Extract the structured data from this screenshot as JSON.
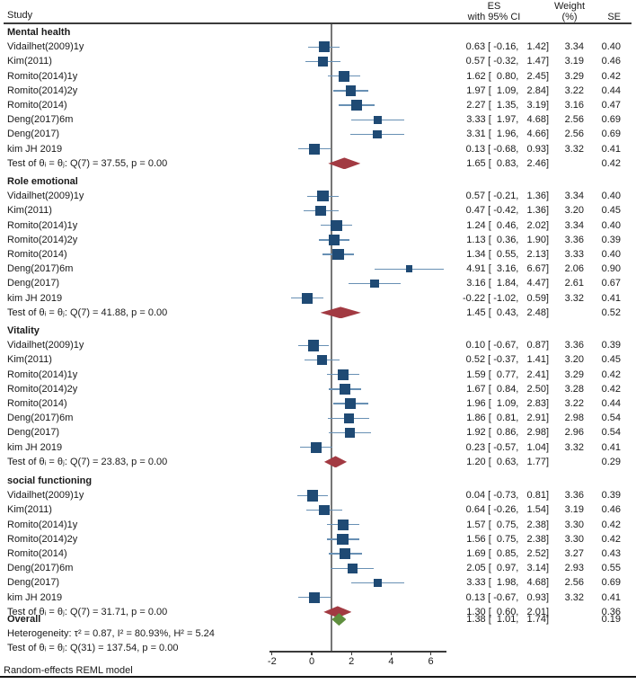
{
  "header": {
    "study": "Study",
    "es_line1": "ES",
    "es_line2": "with 95% CI",
    "weight_line1": "Weight",
    "weight_line2": "(%)",
    "se": "SE"
  },
  "footer": {
    "model": "Random-effects REML model"
  },
  "colors": {
    "marker_square": "#1f4a74",
    "ci_line": "#6890b4",
    "diamond_subgroup": "#a23a42",
    "diamond_overall": "#5f8f3e",
    "reference_line": "#767676",
    "axis": "#3b3b3b",
    "text": "#1a1a1a"
  },
  "chart_data": {
    "type": "forest",
    "title": "",
    "xlabel": "",
    "axis": {
      "ticks": [
        -2,
        0,
        2,
        4,
        6
      ],
      "range": [
        -2.1,
        6.8
      ]
    },
    "reference_line_x": 1,
    "legend": "none",
    "grid": false,
    "columns": [
      "Study",
      "ES with 95% CI",
      "Weight (%)",
      "SE"
    ],
    "groups": [
      {
        "name": "Mental health",
        "studies": [
          {
            "label": "Vidailhet(2009)1y",
            "es": 0.63,
            "lo": -0.16,
            "hi": 1.42,
            "weight": 3.34,
            "se": 0.4
          },
          {
            "label": "Kim(2011)",
            "es": 0.57,
            "lo": -0.32,
            "hi": 1.47,
            "weight": 3.19,
            "se": 0.46
          },
          {
            "label": "Romito(2014)1y",
            "es": 1.62,
            "lo": 0.8,
            "hi": 2.45,
            "weight": 3.29,
            "se": 0.42
          },
          {
            "label": "Romito(2014)2y",
            "es": 1.97,
            "lo": 1.09,
            "hi": 2.84,
            "weight": 3.22,
            "se": 0.44
          },
          {
            "label": "Romito(2014)",
            "es": 2.27,
            "lo": 1.35,
            "hi": 3.19,
            "weight": 3.16,
            "se": 0.47
          },
          {
            "label": "Deng(2017)6m",
            "es": 3.33,
            "lo": 1.97,
            "hi": 4.68,
            "weight": 2.56,
            "se": 0.69
          },
          {
            "label": "Deng(2017)",
            "es": 3.31,
            "lo": 1.96,
            "hi": 4.66,
            "weight": 2.56,
            "se": 0.69
          },
          {
            "label": "kim JH 2019",
            "es": 0.13,
            "lo": -0.68,
            "hi": 0.93,
            "weight": 3.32,
            "se": 0.41
          }
        ],
        "test": {
          "label": "Test of θᵢ = θⱼ: Q(7) = 37.55, p = 0.00",
          "es": 1.65,
          "lo": 0.83,
          "hi": 2.46,
          "se": 0.42
        }
      },
      {
        "name": "Role emotional",
        "studies": [
          {
            "label": "Vidailhet(2009)1y",
            "es": 0.57,
            "lo": -0.21,
            "hi": 1.36,
            "weight": 3.34,
            "se": 0.4
          },
          {
            "label": "Kim(2011)",
            "es": 0.47,
            "lo": -0.42,
            "hi": 1.36,
            "weight": 3.2,
            "se": 0.45
          },
          {
            "label": "Romito(2014)1y",
            "es": 1.24,
            "lo": 0.46,
            "hi": 2.02,
            "weight": 3.34,
            "se": 0.4
          },
          {
            "label": "Romito(2014)2y",
            "es": 1.13,
            "lo": 0.36,
            "hi": 1.9,
            "weight": 3.36,
            "se": 0.39
          },
          {
            "label": "Romito(2014)",
            "es": 1.34,
            "lo": 0.55,
            "hi": 2.13,
            "weight": 3.33,
            "se": 0.4
          },
          {
            "label": "Deng(2017)6m",
            "es": 4.91,
            "lo": 3.16,
            "hi": 6.67,
            "weight": 2.06,
            "se": 0.9
          },
          {
            "label": "Deng(2017)",
            "es": 3.16,
            "lo": 1.84,
            "hi": 4.47,
            "weight": 2.61,
            "se": 0.67
          },
          {
            "label": "kim JH 2019",
            "es": -0.22,
            "lo": -1.02,
            "hi": 0.59,
            "weight": 3.32,
            "se": 0.41
          }
        ],
        "test": {
          "label": "Test of θᵢ = θⱼ: Q(7) = 41.88, p = 0.00",
          "es": 1.45,
          "lo": 0.43,
          "hi": 2.48,
          "se": 0.52
        }
      },
      {
        "name": "Vitality",
        "studies": [
          {
            "label": "Vidailhet(2009)1y",
            "es": 0.1,
            "lo": -0.67,
            "hi": 0.87,
            "weight": 3.36,
            "se": 0.39
          },
          {
            "label": "Kim(2011)",
            "es": 0.52,
            "lo": -0.37,
            "hi": 1.41,
            "weight": 3.2,
            "se": 0.45
          },
          {
            "label": "Romito(2014)1y",
            "es": 1.59,
            "lo": 0.77,
            "hi": 2.41,
            "weight": 3.29,
            "se": 0.42
          },
          {
            "label": "Romito(2014)2y",
            "es": 1.67,
            "lo": 0.84,
            "hi": 2.5,
            "weight": 3.28,
            "se": 0.42
          },
          {
            "label": "Romito(2014)",
            "es": 1.96,
            "lo": 1.09,
            "hi": 2.83,
            "weight": 3.22,
            "se": 0.44
          },
          {
            "label": "Deng(2017)6m",
            "es": 1.86,
            "lo": 0.81,
            "hi": 2.91,
            "weight": 2.98,
            "se": 0.54
          },
          {
            "label": "Deng(2017)",
            "es": 1.92,
            "lo": 0.86,
            "hi": 2.98,
            "weight": 2.96,
            "se": 0.54
          },
          {
            "label": "kim JH 2019",
            "es": 0.23,
            "lo": -0.57,
            "hi": 1.04,
            "weight": 3.32,
            "se": 0.41
          }
        ],
        "test": {
          "label": "Test of θᵢ = θⱼ: Q(7) = 23.83, p = 0.00",
          "es": 1.2,
          "lo": 0.63,
          "hi": 1.77,
          "se": 0.29
        }
      },
      {
        "name": "social functioning",
        "studies": [
          {
            "label": "Vidailhet(2009)1y",
            "es": 0.04,
            "lo": -0.73,
            "hi": 0.81,
            "weight": 3.36,
            "se": 0.39
          },
          {
            "label": "Kim(2011)",
            "es": 0.64,
            "lo": -0.26,
            "hi": 1.54,
            "weight": 3.19,
            "se": 0.46
          },
          {
            "label": "Romito(2014)1y",
            "es": 1.57,
            "lo": 0.75,
            "hi": 2.38,
            "weight": 3.3,
            "se": 0.42
          },
          {
            "label": "Romito(2014)2y",
            "es": 1.56,
            "lo": 0.75,
            "hi": 2.38,
            "weight": 3.3,
            "se": 0.42
          },
          {
            "label": "Romito(2014)",
            "es": 1.69,
            "lo": 0.85,
            "hi": 2.52,
            "weight": 3.27,
            "se": 0.43
          },
          {
            "label": "Deng(2017)6m",
            "es": 2.05,
            "lo": 0.97,
            "hi": 3.14,
            "weight": 2.93,
            "se": 0.55
          },
          {
            "label": "Deng(2017)",
            "es": 3.33,
            "lo": 1.98,
            "hi": 4.68,
            "weight": 2.56,
            "se": 0.69
          },
          {
            "label": "kim JH 2019",
            "es": 0.13,
            "lo": -0.67,
            "hi": 0.93,
            "weight": 3.32,
            "se": 0.41
          }
        ],
        "test": {
          "label": "Test of θᵢ = θⱼ: Q(7) = 31.71, p = 0.00",
          "es": 1.3,
          "lo": 0.6,
          "hi": 2.01,
          "se": 0.36
        }
      }
    ],
    "overall": {
      "label": "Overall",
      "es": 1.38,
      "lo": 1.01,
      "hi": 1.74,
      "se": 0.19,
      "heterogeneity": "Heterogeneity: τ² = 0.87, I² = 80.93%, H² = 5.24",
      "test": "Test of θᵢ = θⱼ: Q(31) = 137.54, p = 0.00"
    }
  }
}
